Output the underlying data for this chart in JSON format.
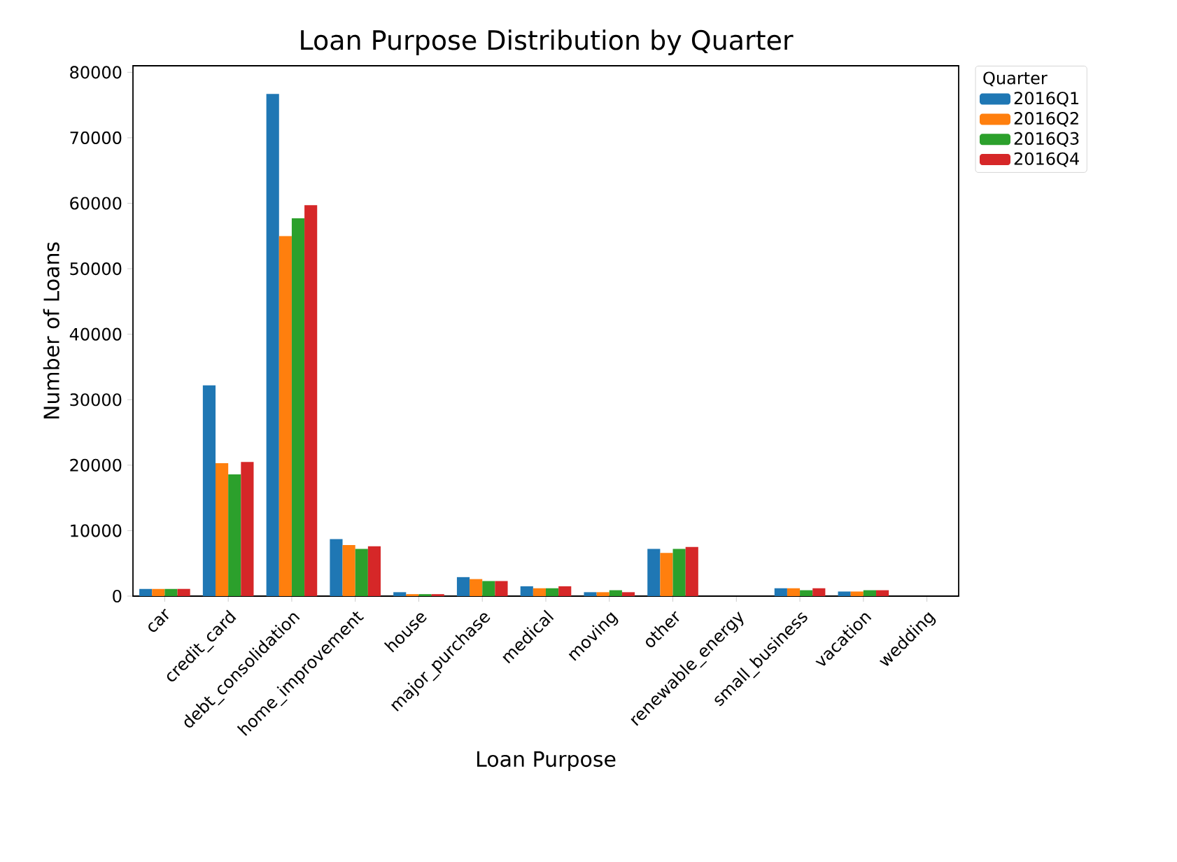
{
  "chart_data": {
    "type": "bar",
    "title": "Loan Purpose Distribution by Quarter",
    "xlabel": "Loan Purpose",
    "ylabel": "Number of Loans",
    "legend_title": "Quarter",
    "legend": "top right",
    "categories": [
      "car",
      "credit_card",
      "debt_consolidation",
      "home_improvement",
      "house",
      "major_purchase",
      "medical",
      "moving",
      "other",
      "renewable_energy",
      "small_business",
      "vacation",
      "wedding"
    ],
    "ylim": [
      0,
      81000
    ],
    "yticks": [
      0,
      10000,
      20000,
      30000,
      40000,
      50000,
      60000,
      70000,
      80000
    ],
    "series": [
      {
        "name": "2016Q1",
        "color": "#1f77b4",
        "values": [
          1100,
          32200,
          76700,
          8700,
          600,
          2900,
          1500,
          600,
          7200,
          0,
          1200,
          700,
          0
        ]
      },
      {
        "name": "2016Q2",
        "color": "#ff7f0e",
        "values": [
          1100,
          20300,
          55000,
          7800,
          300,
          2600,
          1200,
          600,
          6600,
          0,
          1200,
          700,
          0
        ]
      },
      {
        "name": "2016Q3",
        "color": "#2ca02c",
        "values": [
          1100,
          18600,
          57700,
          7200,
          300,
          2300,
          1200,
          900,
          7200,
          0,
          900,
          900,
          0
        ]
      },
      {
        "name": "2016Q4",
        "color": "#d62728",
        "values": [
          1100,
          20500,
          59700,
          7600,
          300,
          2300,
          1500,
          600,
          7500,
          0,
          1200,
          900,
          0
        ]
      }
    ]
  }
}
